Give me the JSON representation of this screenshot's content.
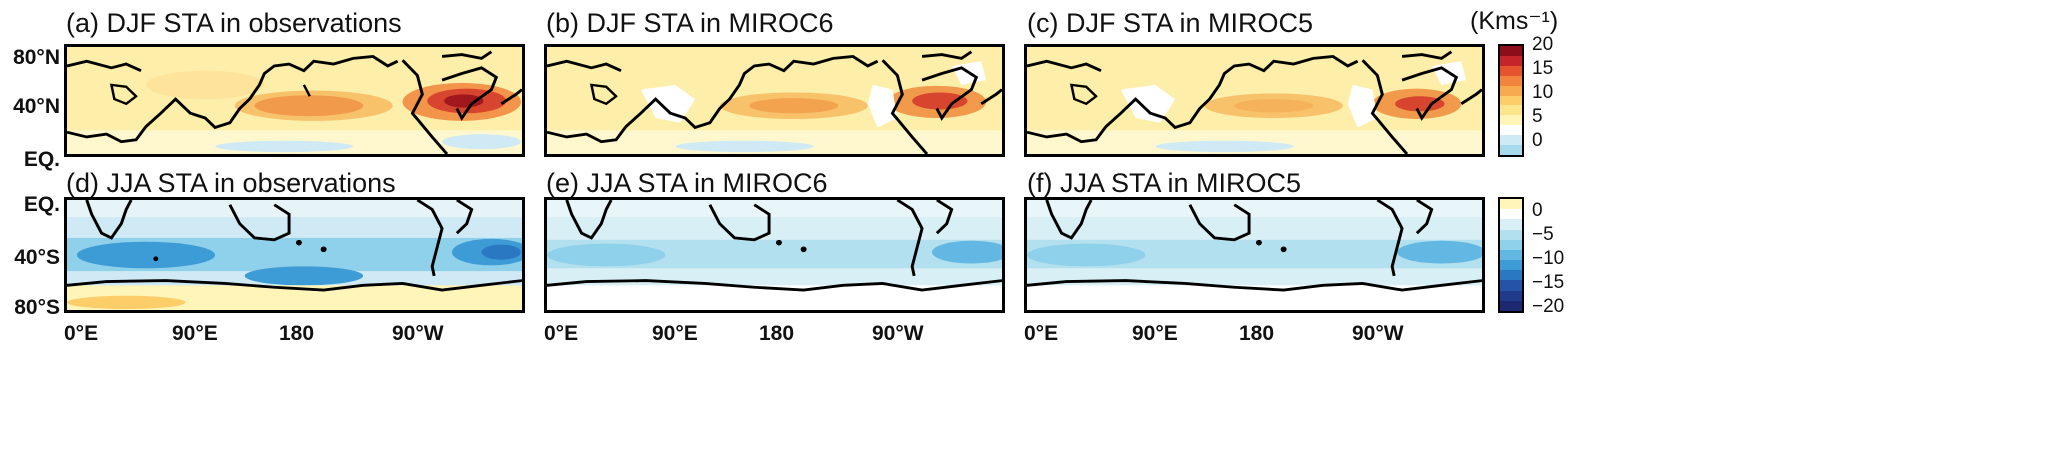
{
  "figure": {
    "units": "(Kms⁻¹)",
    "panels": [
      {
        "id": "a",
        "title": "(a) DJF STA in observations",
        "season": "DJF",
        "source": "observations"
      },
      {
        "id": "b",
        "title": "(b) DJF STA in MIROC6",
        "season": "DJF",
        "source": "MIROC6"
      },
      {
        "id": "c",
        "title": "(c) DJF STA in MIROC5",
        "season": "DJF",
        "source": "MIROC5"
      },
      {
        "id": "d",
        "title": "(d) JJA STA in observations",
        "season": "JJA",
        "source": "observations"
      },
      {
        "id": "e",
        "title": "(e) JJA STA in MIROC6",
        "season": "JJA",
        "source": "MIROC6"
      },
      {
        "id": "f",
        "title": "(f) JJA STA in MIROC5",
        "season": "JJA",
        "source": "MIROC5"
      }
    ],
    "lat_labels_top": [
      "80°N",
      "40°N",
      "EQ."
    ],
    "lat_labels_bottom": [
      "EQ.",
      "40°S",
      "80°S"
    ],
    "lon_labels": [
      "0°E",
      "90°E",
      "180",
      "90°W"
    ],
    "colorbar_top": {
      "ticks": [
        "20",
        "15",
        "10",
        "5",
        "0"
      ],
      "colors": [
        "#8e0d1a",
        "#c4242a",
        "#e5532f",
        "#f3843f",
        "#f7ab4e",
        "#fbce6a",
        "#fde58e",
        "#fff5b8",
        "#ffffff",
        "#cfeaf4",
        "#a8daee"
      ]
    },
    "colorbar_bottom": {
      "ticks": [
        "0",
        "−5",
        "−10",
        "−15",
        "−20"
      ],
      "colors": [
        "#fff5b8",
        "#ffffff",
        "#d8eff6",
        "#b3e0ef",
        "#8fd0ea",
        "#62b8e2",
        "#3d9bd6",
        "#2a78c2",
        "#2553a6",
        "#223a8a",
        "#1c2870"
      ]
    }
  }
}
